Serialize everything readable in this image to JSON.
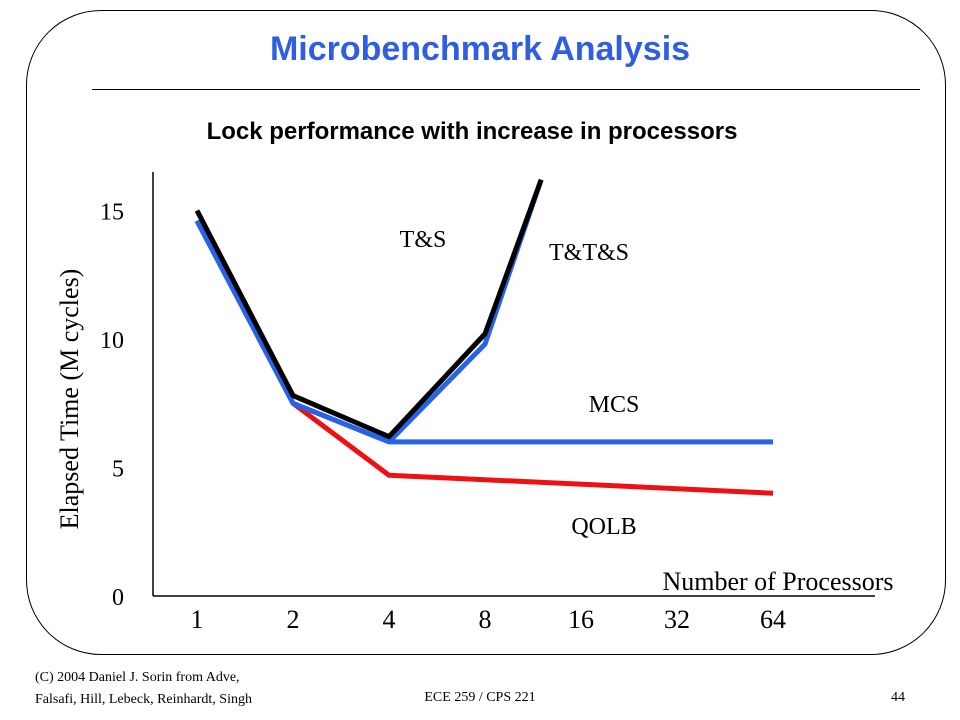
{
  "slide": {
    "title": "Microbenchmark Analysis",
    "subtitle": "Lock performance with increase in processors",
    "footer_left_line1": "(C) 2004 Daniel J. Sorin from Adve,",
    "footer_left_line2": "Falsafi, Hill, Lebeck, Reinhardt, Singh",
    "footer_center": "ECE 259 / CPS 221",
    "page_number": "44"
  },
  "chart_data": {
    "type": "line",
    "xlabel": "Number of Processors",
    "ylabel": "Elapsed Time (M cycles)",
    "categories": [
      "1",
      "2",
      "4",
      "8",
      "16",
      "32",
      "64"
    ],
    "y_ticks": [
      "0",
      "5",
      "10",
      "15"
    ],
    "ylim": [
      0,
      16.5
    ],
    "grid": false,
    "legend": "none",
    "series": [
      {
        "name": "T&S",
        "color": "#000000",
        "x": [
          1,
          2,
          4,
          8,
          12
        ],
        "values": [
          15.0,
          7.8,
          6.2,
          10.2,
          16.2
        ]
      },
      {
        "name": "T&T&S",
        "color": "#2563eb",
        "x": [
          1,
          2,
          4,
          8,
          12
        ],
        "values": [
          14.6,
          7.5,
          6.0,
          9.8,
          16.2
        ]
      },
      {
        "name": "MCS",
        "color": "#2563eb",
        "x": [
          1,
          2,
          4,
          64
        ],
        "values": [
          14.6,
          7.5,
          6.0,
          6.0
        ]
      },
      {
        "name": "QOLB",
        "color": "#ee1111",
        "x": [
          2,
          4,
          64
        ],
        "values": [
          7.5,
          4.7,
          4.0
        ]
      }
    ]
  }
}
